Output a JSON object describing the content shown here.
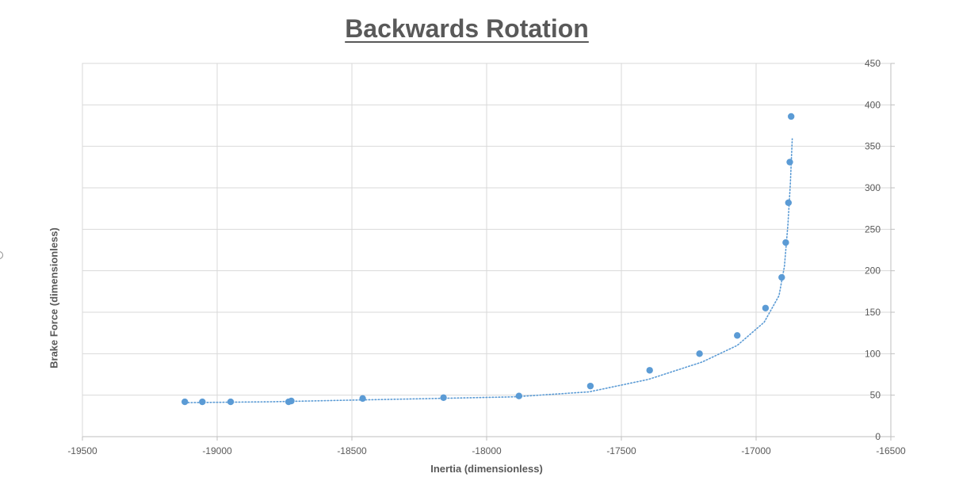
{
  "chart_data": {
    "type": "scatter",
    "title": "Backwards Rotation",
    "xlabel": "Inertia (dimensionless)",
    "ylabel": "Brake Force (dimensionless)",
    "xlim": [
      -19500,
      -16500
    ],
    "ylim": [
      0,
      450
    ],
    "x_ticks": [
      -19500,
      -19000,
      -18500,
      -18000,
      -17500,
      -17000,
      -16500
    ],
    "y_ticks": [
      0,
      50,
      100,
      150,
      200,
      250,
      300,
      350,
      400,
      450
    ],
    "grid": true,
    "y_axis_position": "right",
    "legend": "none",
    "series": [
      {
        "marker_color": "#5B9BD5",
        "points": [
          {
            "x": -19120,
            "y": 42
          },
          {
            "x": -19055,
            "y": 42
          },
          {
            "x": -18950,
            "y": 42
          },
          {
            "x": -18735,
            "y": 42
          },
          {
            "x": -18725,
            "y": 43
          },
          {
            "x": -18460,
            "y": 46
          },
          {
            "x": -18160,
            "y": 47
          },
          {
            "x": -17880,
            "y": 49
          },
          {
            "x": -17615,
            "y": 61
          },
          {
            "x": -17395,
            "y": 80
          },
          {
            "x": -17210,
            "y": 100
          },
          {
            "x": -17070,
            "y": 122
          },
          {
            "x": -16965,
            "y": 155
          },
          {
            "x": -16905,
            "y": 192
          },
          {
            "x": -16890,
            "y": 234
          },
          {
            "x": -16880,
            "y": 282
          },
          {
            "x": -16875,
            "y": 331
          },
          {
            "x": -16870,
            "y": 386
          }
        ]
      }
    ],
    "trendline": {
      "style": "dotted",
      "color": "#5B9BD5",
      "points": [
        {
          "x": -19120,
          "y": 41
        },
        {
          "x": -18800,
          "y": 42
        },
        {
          "x": -18500,
          "y": 44
        },
        {
          "x": -18200,
          "y": 46
        },
        {
          "x": -17900,
          "y": 48
        },
        {
          "x": -17620,
          "y": 54
        },
        {
          "x": -17400,
          "y": 69
        },
        {
          "x": -17200,
          "y": 90
        },
        {
          "x": -17070,
          "y": 110
        },
        {
          "x": -16970,
          "y": 138
        },
        {
          "x": -16915,
          "y": 170
        },
        {
          "x": -16895,
          "y": 205
        },
        {
          "x": -16882,
          "y": 255
        },
        {
          "x": -16873,
          "y": 305
        },
        {
          "x": -16866,
          "y": 359
        }
      ]
    }
  }
}
